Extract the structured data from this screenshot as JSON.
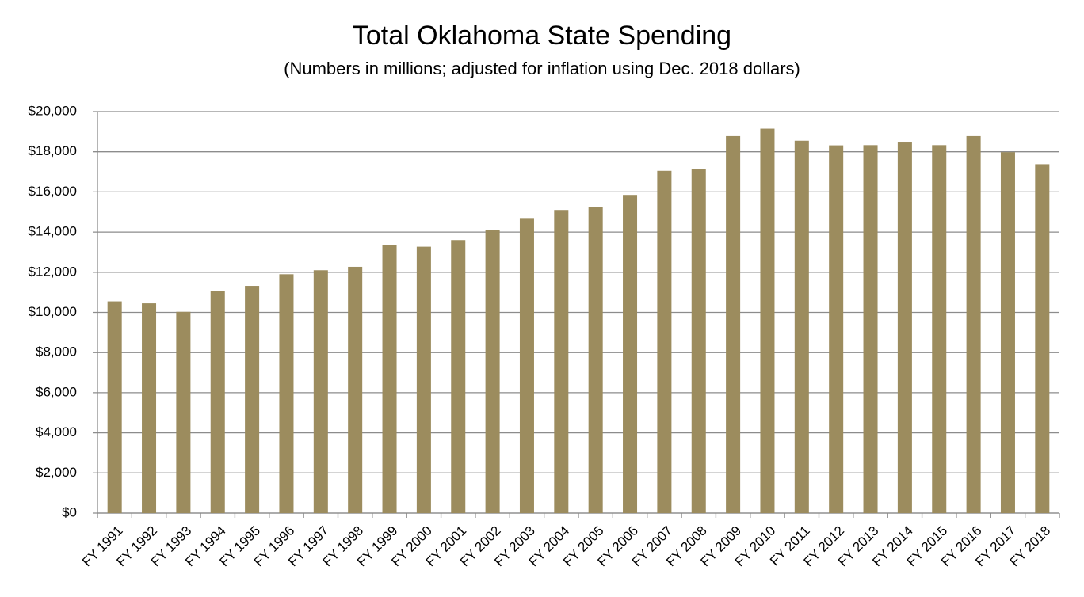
{
  "chart_data": {
    "type": "bar",
    "title": "Total Oklahoma State Spending",
    "subtitle": "(Numbers in millions; adjusted for inflation using Dec. 2018 dollars)",
    "categories": [
      "FY 1991",
      "FY 1992",
      "FY 1993",
      "FY 1994",
      "FY 1995",
      "FY 1996",
      "FY 1997",
      "FY 1998",
      "FY 1999",
      "FY 2000",
      "FY 2001",
      "FY 2002",
      "FY 2003",
      "FY 2004",
      "FY 2005",
      "FY 2006",
      "FY 2007",
      "FY 2008",
      "FY 2009",
      "FY 2010",
      "FY 2011",
      "FY 2012",
      "FY 2013",
      "FY 2014",
      "FY 2015",
      "FY 2016",
      "FY 2017",
      "FY 2018"
    ],
    "values": [
      10550,
      10450,
      10030,
      11080,
      11320,
      11900,
      12100,
      12270,
      13370,
      13270,
      13600,
      14100,
      14700,
      15100,
      15250,
      15850,
      17050,
      17150,
      18780,
      19150,
      18550,
      18320,
      18330,
      18500,
      18330,
      18780,
      17980,
      17380
    ],
    "color": "#9c8c5e",
    "ylim": [
      0,
      20000
    ],
    "yticks": [
      {
        "value": 0,
        "label": "$0"
      },
      {
        "value": 2000,
        "label": "$2,000"
      },
      {
        "value": 4000,
        "label": "$4,000"
      },
      {
        "value": 6000,
        "label": "$6,000"
      },
      {
        "value": 8000,
        "label": "$8,000"
      },
      {
        "value": 10000,
        "label": "$10,000"
      },
      {
        "value": 12000,
        "label": "$12,000"
      },
      {
        "value": 14000,
        "label": "$14,000"
      },
      {
        "value": 16000,
        "label": "$16,000"
      },
      {
        "value": 18000,
        "label": "$18,000"
      },
      {
        "value": 20000,
        "label": "$20,000"
      }
    ],
    "grid": true
  }
}
